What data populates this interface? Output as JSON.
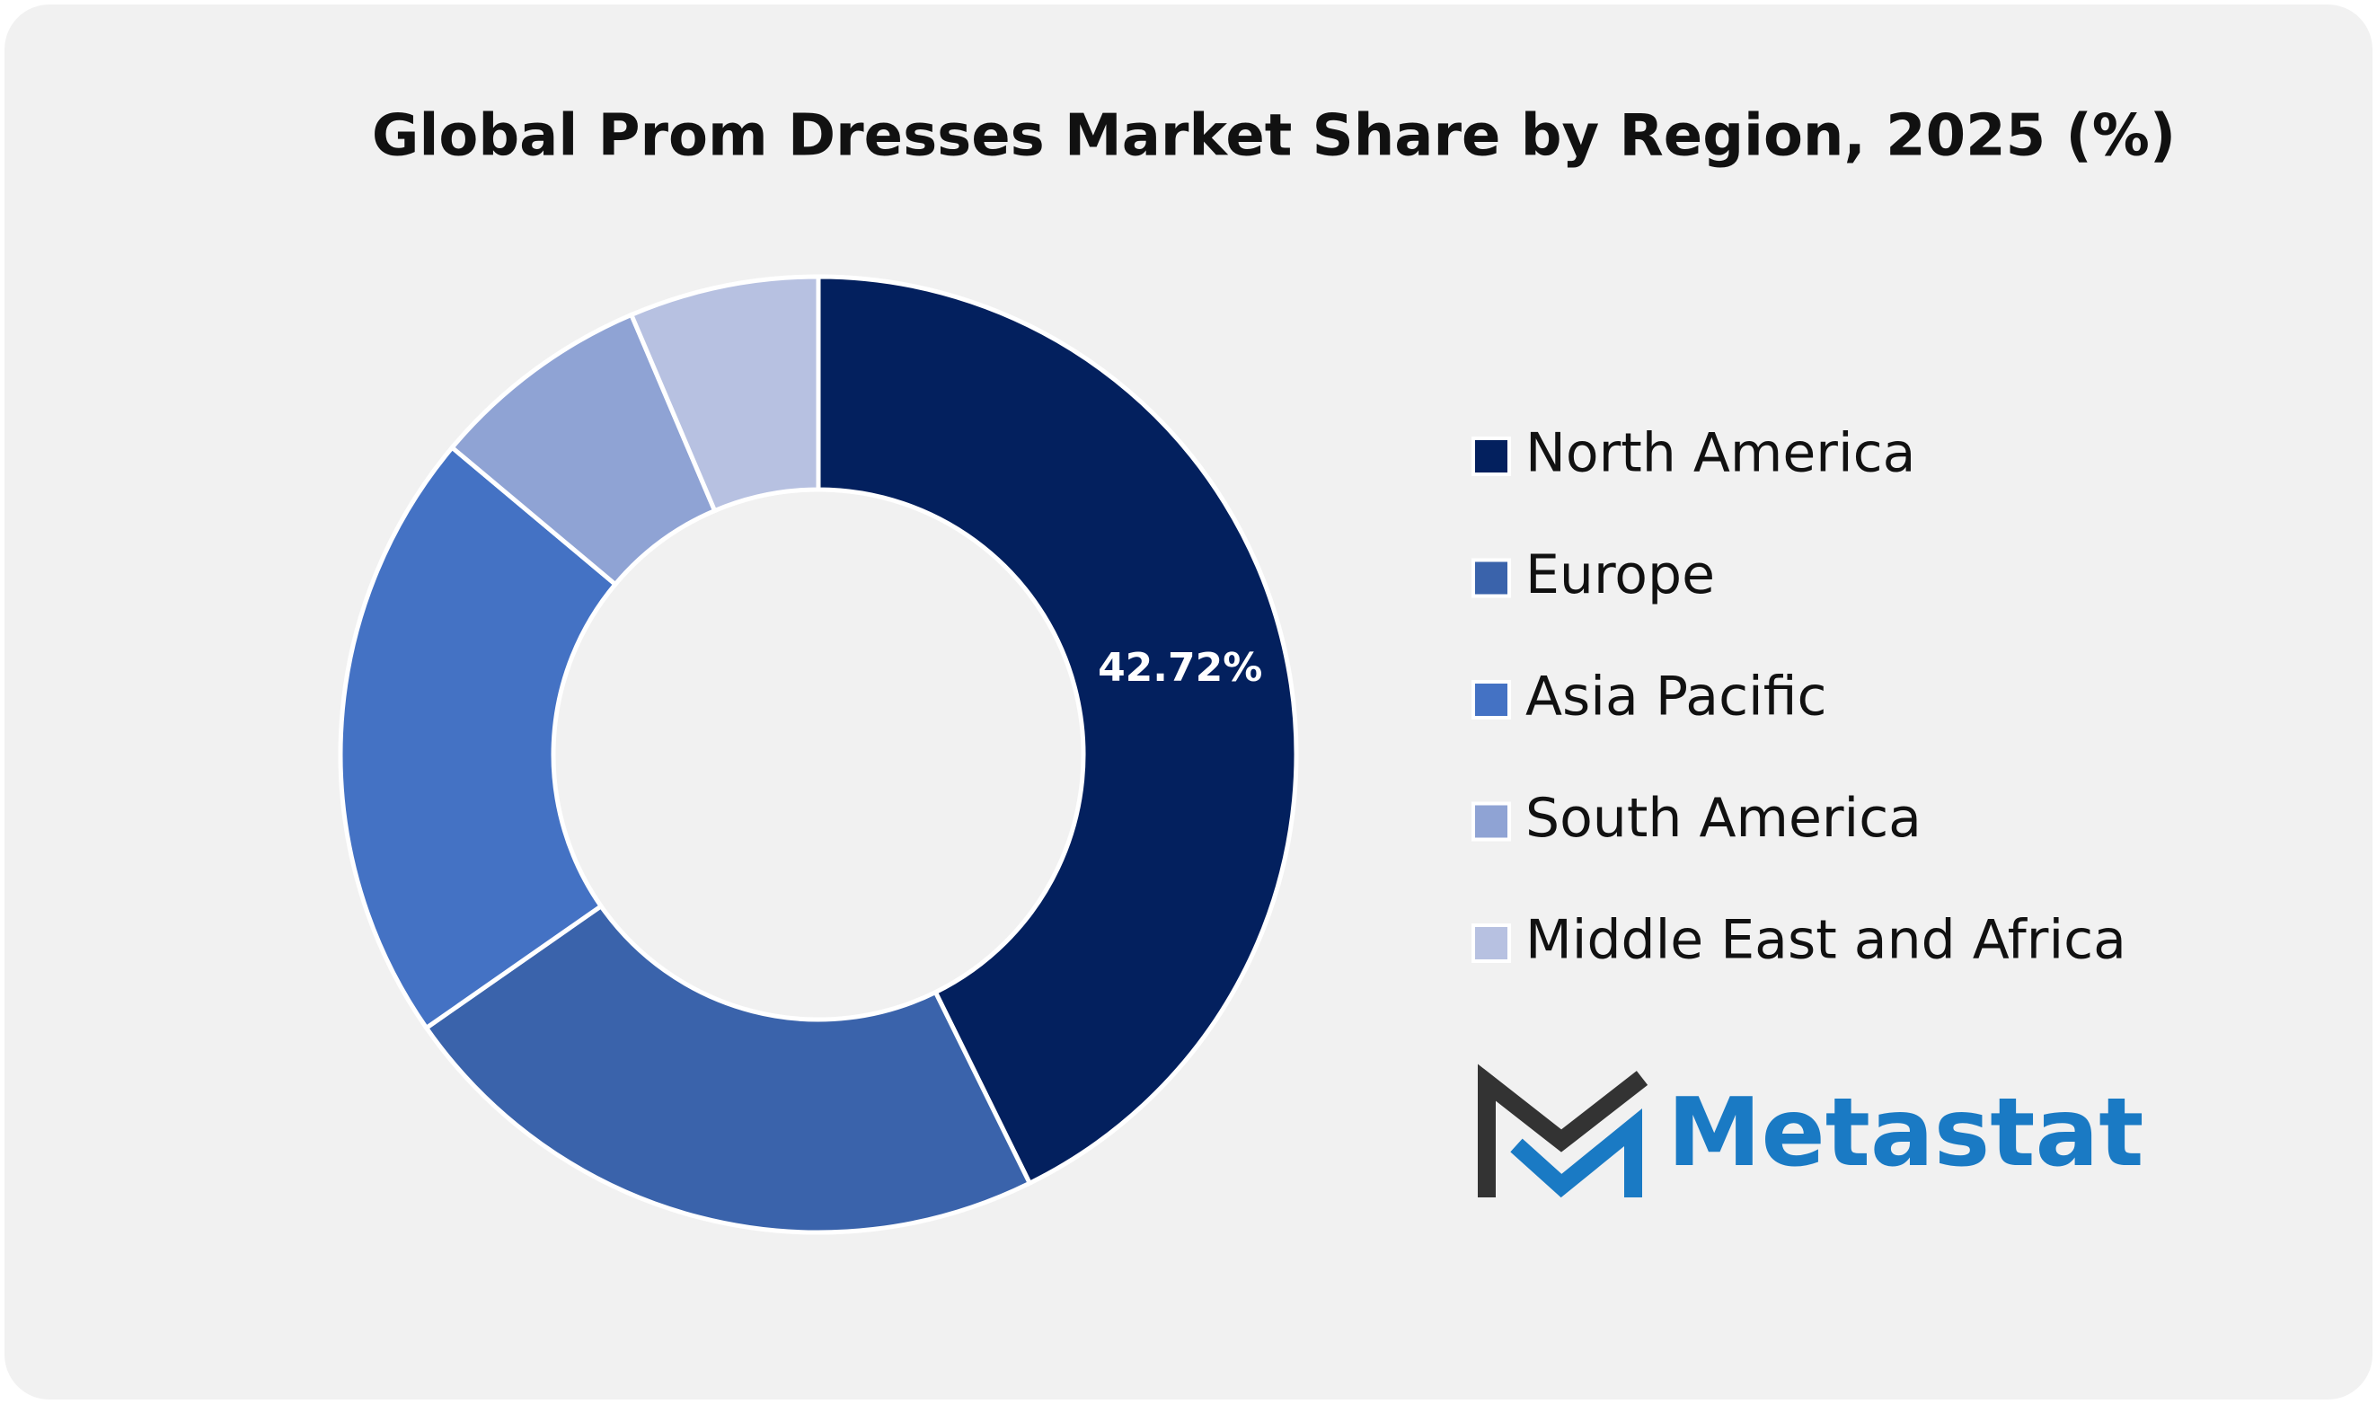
{
  "chart_data": {
    "type": "donut",
    "title": "Global Prom Dresses Market Share by Region, 2025 (%)",
    "categories": [
      "North America",
      "Europe",
      "Asia Pacific",
      "South America",
      "Middle East and Africa"
    ],
    "values": [
      42.72,
      22.6,
      20.8,
      7.5,
      6.4
    ],
    "value_labels": [
      "42.72%",
      null,
      null,
      null,
      null
    ],
    "colors": [
      "#03205e",
      "#3a63ab",
      "#4472c4",
      "#8fa3d4",
      "#b7c1e1"
    ],
    "legend": "right"
  },
  "brand": "Metastat"
}
